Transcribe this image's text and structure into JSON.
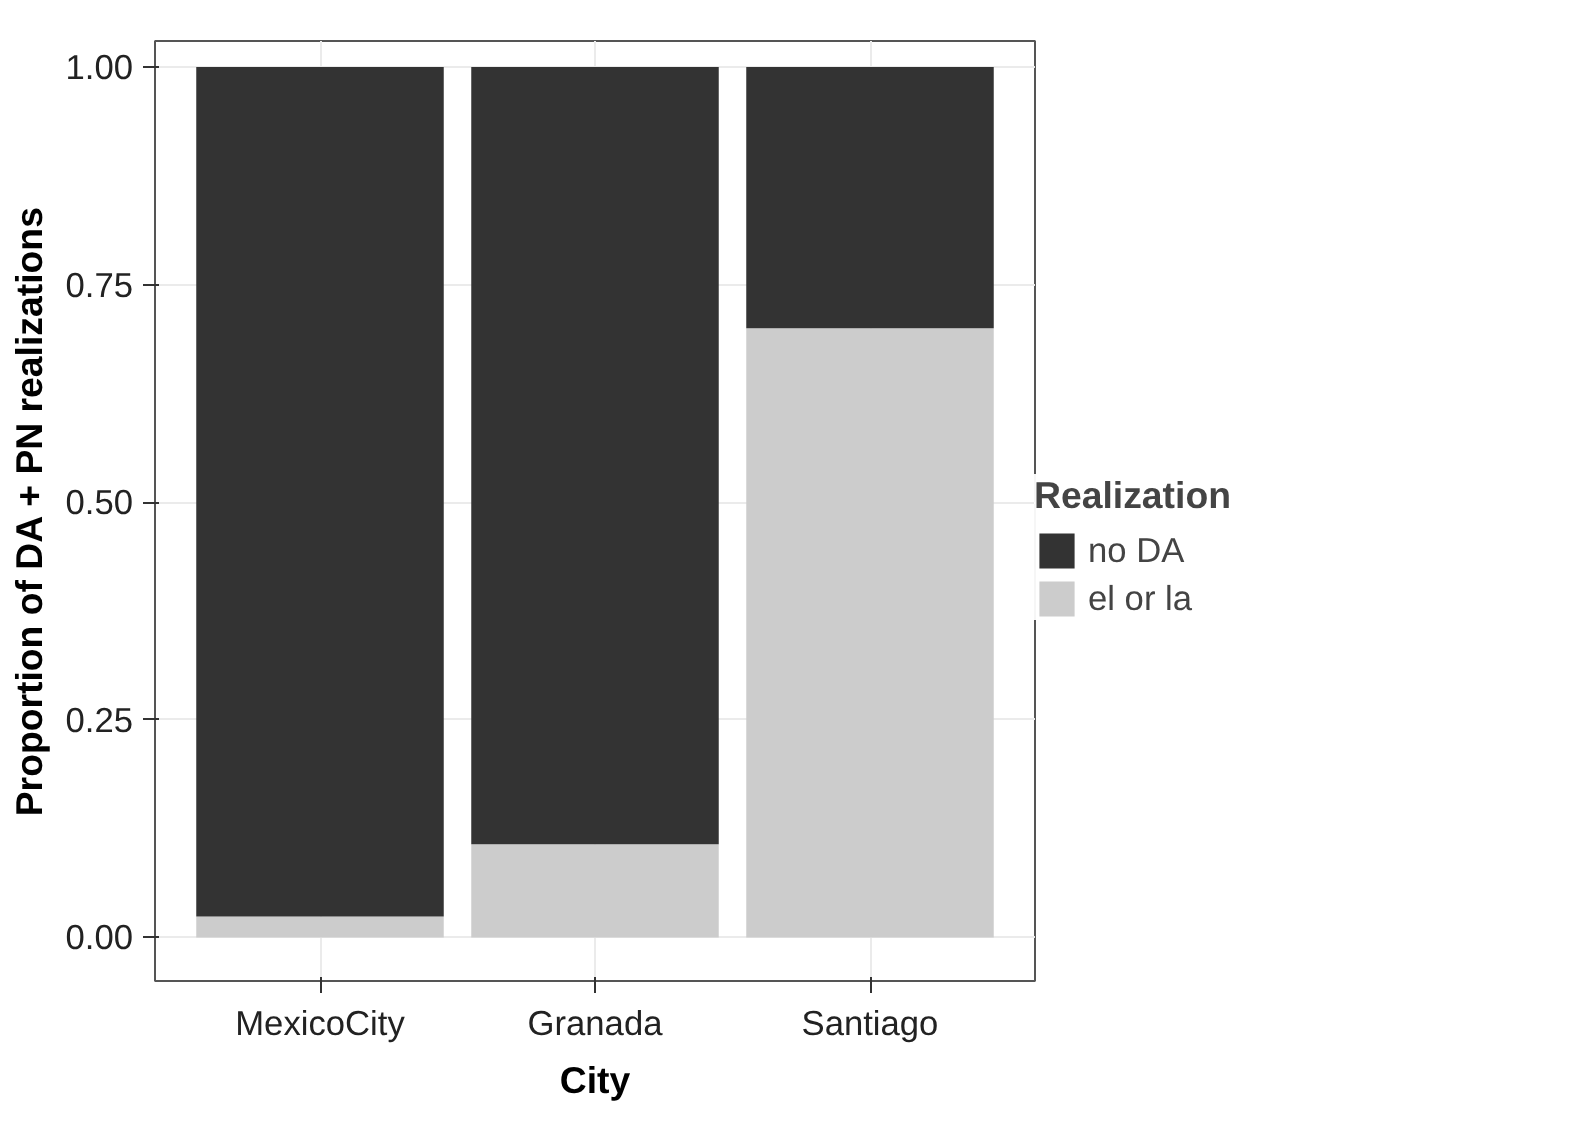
{
  "chart_data": {
    "type": "bar",
    "stacked": true,
    "xlabel": "City",
    "ylabel": "Proportion of DA + PN realizations",
    "legend_title": "Realization",
    "categories": [
      "MexicoCity",
      "Granada",
      "Santiago"
    ],
    "series": [
      {
        "name": "el or la",
        "color": "#cccccc",
        "values": [
          0.024,
          0.107,
          0.7
        ]
      },
      {
        "name": "no DA",
        "color": "#333333",
        "values": [
          0.976,
          0.893,
          0.3
        ]
      }
    ],
    "ylim": [
      -0.05,
      1.03
    ],
    "yticks": [
      {
        "value": 0,
        "label": "0.00"
      },
      {
        "value": 0.25,
        "label": "0.25"
      },
      {
        "value": 0.5,
        "label": "0.50"
      },
      {
        "value": 0.75,
        "label": "0.75"
      },
      {
        "value": 1,
        "label": "1.00"
      }
    ],
    "grid": true,
    "legend": "right"
  }
}
